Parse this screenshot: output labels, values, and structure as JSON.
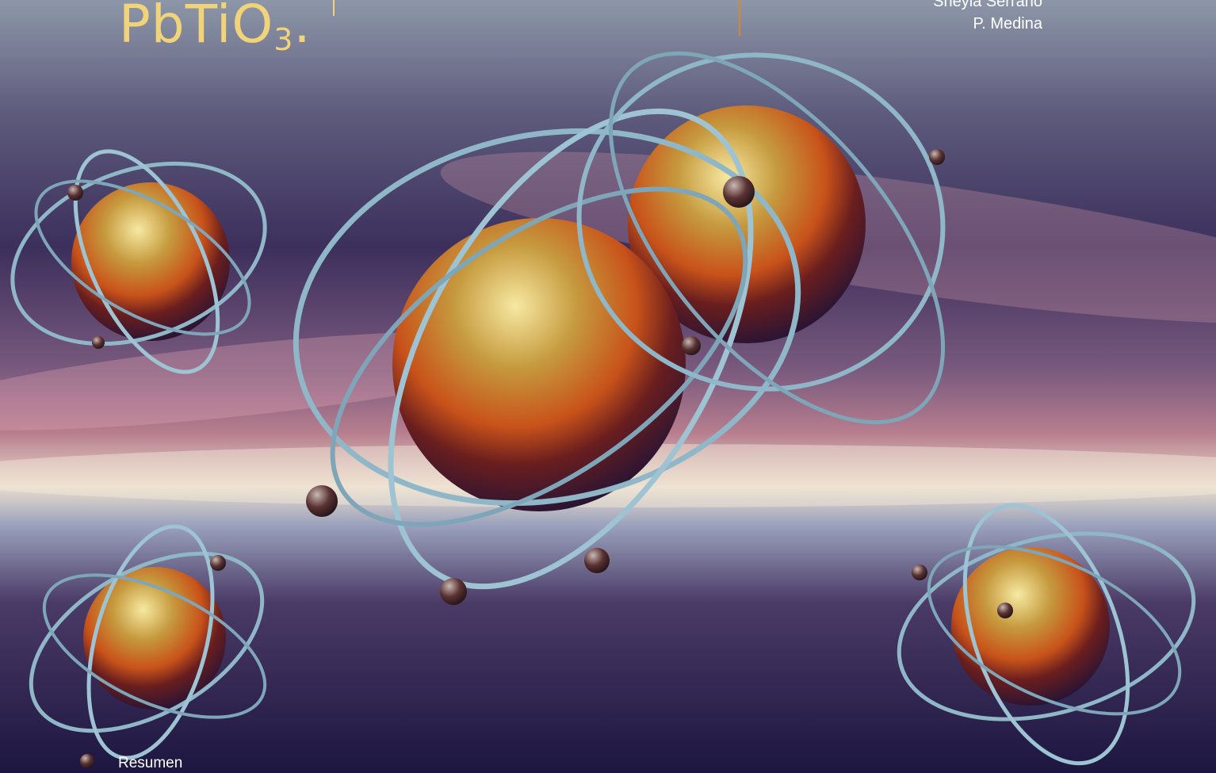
{
  "title": {
    "formula_main": "PbTiO",
    "formula_sub": "3",
    "formula_tail": "."
  },
  "authors": [
    "Sheyla Serrano",
    "P. Medina"
  ],
  "section_label": "Resumen",
  "colors": {
    "title": "#f1d37a",
    "accent_line": "#d9872a",
    "text": "#ffffff"
  }
}
